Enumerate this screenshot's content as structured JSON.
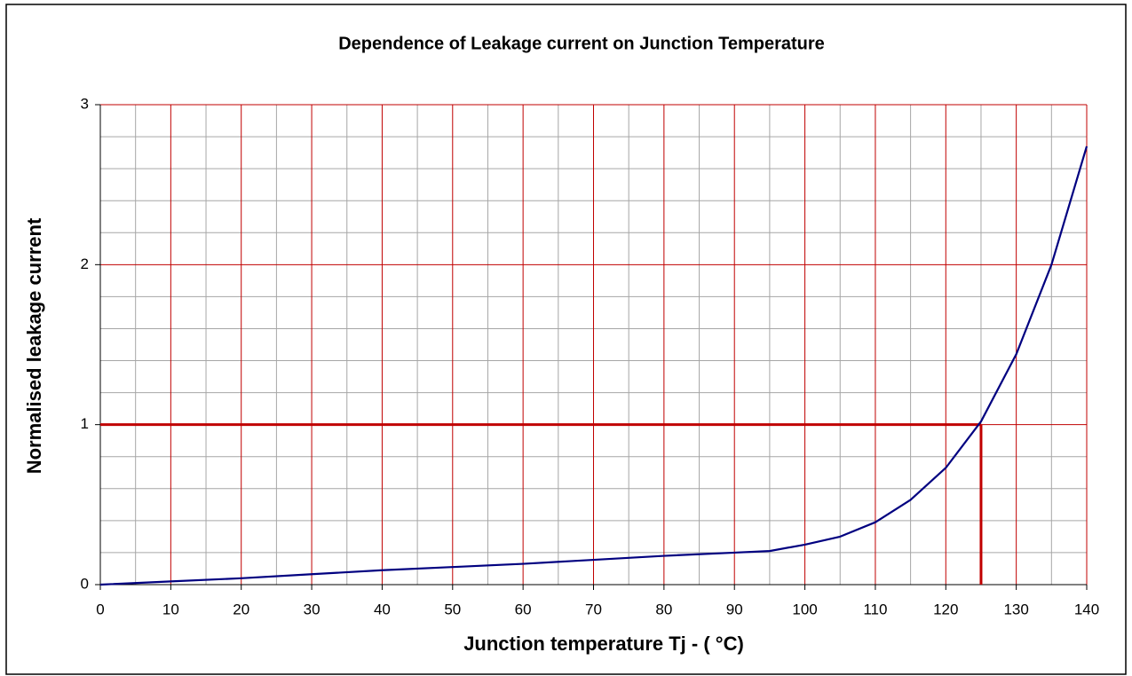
{
  "chart_data": {
    "type": "line",
    "title": "Dependence of Leakage current on Junction Temperature",
    "xlabel": "Junction temperature  Tj - ( °C)",
    "ylabel": "Normalised leakage current",
    "x": [
      0,
      10,
      20,
      30,
      40,
      50,
      60,
      70,
      80,
      90,
      95,
      100,
      105,
      110,
      115,
      120,
      125,
      130,
      135,
      140
    ],
    "series": [
      {
        "name": "Normalised leakage current",
        "color": "#000080",
        "values": [
          0,
          0.02,
          0.04,
          0.065,
          0.09,
          0.11,
          0.13,
          0.155,
          0.18,
          0.2,
          0.21,
          0.25,
          0.3,
          0.39,
          0.53,
          0.73,
          1.02,
          1.44,
          2.0,
          2.74
        ]
      }
    ],
    "xlim": [
      0,
      140
    ],
    "ylim": [
      0,
      3
    ],
    "xticks": [
      0,
      10,
      20,
      30,
      40,
      50,
      60,
      70,
      80,
      90,
      100,
      110,
      120,
      130,
      140
    ],
    "yticks": [
      0,
      1,
      2,
      3
    ],
    "minor_xticks": [
      5,
      15,
      25,
      35,
      45,
      55,
      65,
      75,
      85,
      95,
      105,
      115,
      125,
      135
    ],
    "minor_yticks": [
      0.2,
      0.4,
      0.6,
      0.8,
      1.2,
      1.4,
      1.6,
      1.8,
      2.2,
      2.4,
      2.6,
      2.8
    ],
    "grid": true,
    "grid_color": "#c00000",
    "minor_grid_color": "#a6a6a6",
    "reference": {
      "x": 125,
      "y": 1,
      "color": "#c00000"
    }
  }
}
